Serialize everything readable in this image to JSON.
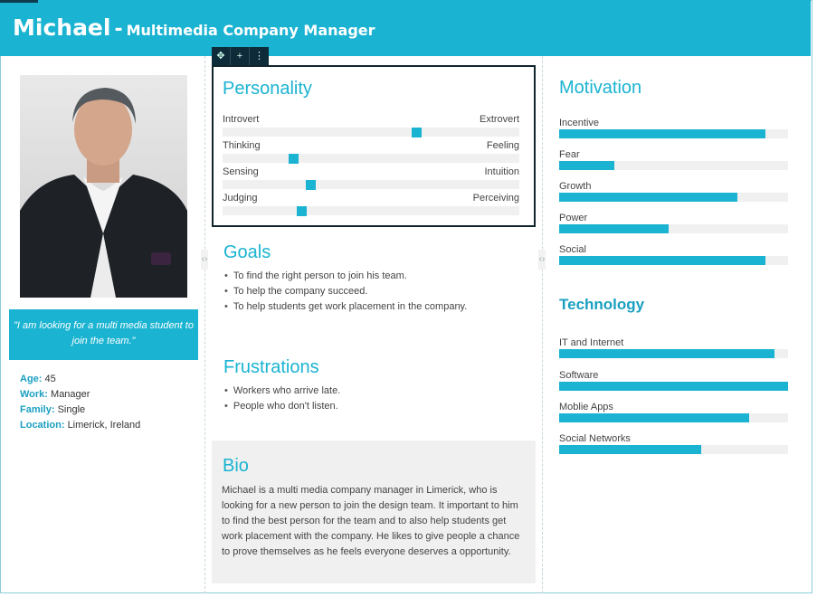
{
  "header": {
    "name": "Michael",
    "dash": "-",
    "role": "Multimedia Company Manager"
  },
  "toolbar": {
    "icons": [
      "move-icon",
      "add-icon",
      "more-icon"
    ]
  },
  "profile": {
    "quote": "\"I am looking for a multi media student to join the team.\"",
    "facts": [
      {
        "key": "Age:",
        "value": "45"
      },
      {
        "key": "Work:",
        "value": "Manager"
      },
      {
        "key": "Family:",
        "value": "Single"
      },
      {
        "key": "Location:",
        "value": "Limerick, Ireland"
      }
    ]
  },
  "personality": {
    "title": "Personality",
    "traits": [
      {
        "left": "Introvert",
        "right": "Extrovert",
        "value": 0.66
      },
      {
        "left": "Thinking",
        "right": "Feeling",
        "value": 0.23
      },
      {
        "left": "Sensing",
        "right": "Intuition",
        "value": 0.29
      },
      {
        "left": "Judging",
        "right": "Perceiving",
        "value": 0.26
      }
    ]
  },
  "goals": {
    "title": "Goals",
    "items": [
      "To find the right person to join his team.",
      "To help the company succeed.",
      "To help students get work placement in the company."
    ]
  },
  "frustrations": {
    "title": "Frustrations",
    "items": [
      "Workers who arrive late.",
      "People who don't listen."
    ]
  },
  "bio": {
    "title": "Bio",
    "text": "Michael is a multi media company manager in Limerick, who is looking for a new person to join the design team. It important to him to find the best person for the team and to also help students get work placement with the company. He likes to give people a chance to prove themselves as he feels everyone deserves a opportunity."
  },
  "motivation": {
    "title": "Motivation",
    "items": [
      {
        "label": "Incentive",
        "value": 0.9
      },
      {
        "label": "Fear",
        "value": 0.24
      },
      {
        "label": "Growth",
        "value": 0.78
      },
      {
        "label": "Power",
        "value": 0.48
      },
      {
        "label": "Social",
        "value": 0.9
      }
    ]
  },
  "technology": {
    "title": "Technology",
    "items": [
      {
        "label": "IT and Internet",
        "value": 0.94
      },
      {
        "label": "Software",
        "value": 1.0
      },
      {
        "label": "Moblie Apps",
        "value": 0.83
      },
      {
        "label": "Social Networks",
        "value": 0.62
      }
    ]
  },
  "colors": {
    "accent": "#1ab3d1",
    "toolbar": "#0e2b3a",
    "track": "#f0f0f0"
  }
}
